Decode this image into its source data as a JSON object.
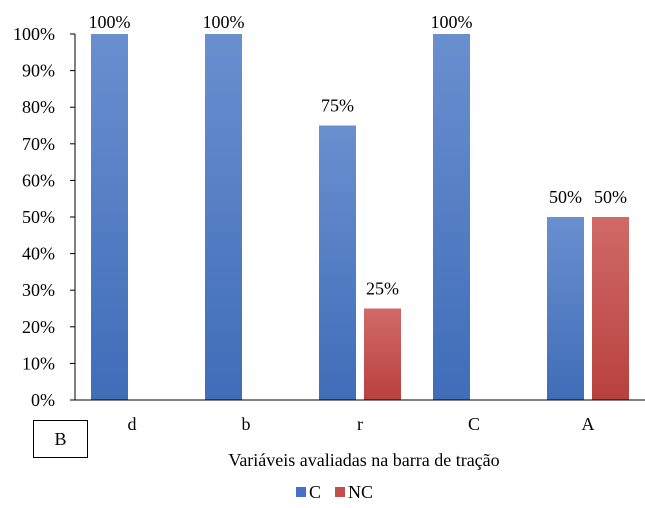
{
  "chart_data": {
    "type": "bar",
    "panel_label": "B",
    "categories": [
      "d",
      "b",
      "r",
      "C",
      "A"
    ],
    "series": [
      {
        "name": "C",
        "values": [
          100,
          100,
          75,
          100,
          50
        ],
        "color": "#4472C4"
      },
      {
        "name": "NC",
        "values": [
          0,
          0,
          25,
          0,
          50
        ],
        "color": "#C0504D"
      }
    ],
    "data_labels": {
      "C": [
        "100%",
        "100%",
        "75%",
        "100%",
        "50%"
      ],
      "NC": [
        "",
        "",
        "25%",
        "",
        "50%"
      ]
    },
    "xlabel": "Variáveis avaliadas na barra de tração",
    "ylabel": "",
    "ylim": [
      0,
      100
    ],
    "yticks": [
      "0%",
      "10%",
      "20%",
      "30%",
      "40%",
      "50%",
      "60%",
      "70%",
      "80%",
      "90%",
      "100%"
    ],
    "grid": false,
    "legend": "bottom"
  }
}
